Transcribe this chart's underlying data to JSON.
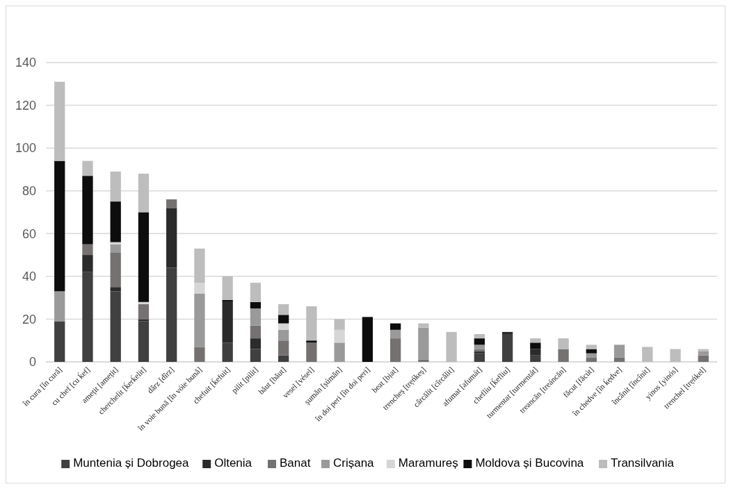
{
  "chart_data": {
    "type": "bar",
    "stacked": true,
    "categories": [
      "în cura [în cură]",
      "cu chef [cu ḱef]",
      "amețit [amețit]",
      "cherchelit [ḱerḱelit]",
      "dârz [dîrz]",
      "în voie bună [în vóie bună]",
      "chefuit [ḱefuit]",
      "pilit [pilit]",
      "băut [băut]",
      "vesel [vésel]",
      "șumăn [șúmăn]",
      "în doi peri [în doi peri]",
      "beat [bịat]",
      "trencheș [trẹńkeș]",
      "cârcălit [cîrcălit]",
      "afumat [afumát]",
      "cheflíu [ḱefliu]",
      "turmentat [turmentát]",
      "treancăn [treáncăn]",
      "făcut [făcút]",
      "în chedve [în ḱẹdve]",
      "încânit [încînit]",
      "yinos [yinós]",
      "trenchel [trẹńkel]"
    ],
    "series": [
      {
        "name": "Muntenia și Dobrogea",
        "color": "#404040",
        "values": [
          19,
          42,
          33,
          19,
          44,
          null,
          9,
          6,
          3,
          null,
          null,
          null,
          null,
          null,
          null,
          4,
          13,
          3,
          null,
          null,
          null,
          null,
          null,
          null
        ]
      },
      {
        "name": "Oltenia",
        "color": "#2b2b2b",
        "values": [
          null,
          8,
          2,
          1,
          28,
          null,
          19,
          5,
          null,
          null,
          null,
          null,
          null,
          null,
          null,
          1,
          1,
          3,
          null,
          null,
          null,
          null,
          null,
          null
        ]
      },
      {
        "name": "Banat",
        "color": "#767171",
        "values": [
          null,
          5,
          16,
          7,
          4,
          7,
          null,
          6,
          7,
          9,
          null,
          null,
          11,
          1,
          null,
          1,
          null,
          null,
          6,
          2,
          2,
          null,
          null,
          3
        ]
      },
      {
        "name": "Crișana",
        "color": "#9a9a9a",
        "values": [
          14,
          null,
          4,
          null,
          null,
          25,
          null,
          8,
          5,
          null,
          9,
          null,
          4,
          15,
          null,
          2,
          null,
          null,
          null,
          2,
          6,
          null,
          null,
          2
        ]
      },
      {
        "name": "Maramureș",
        "color": "#d6d6d6",
        "values": [
          null,
          null,
          1,
          1,
          null,
          5,
          null,
          null,
          3,
          null,
          6,
          null,
          null,
          null,
          null,
          null,
          null,
          null,
          null,
          null,
          null,
          null,
          null,
          null
        ]
      },
      {
        "name": "Moldova și Bucovina",
        "color": "#0d0d0d",
        "values": [
          61,
          32,
          19,
          42,
          null,
          null,
          1,
          3,
          4,
          1,
          null,
          21,
          3,
          null,
          null,
          3,
          null,
          3,
          null,
          2,
          null,
          null,
          null,
          null
        ]
      },
      {
        "name": "Transilvania",
        "color": "#bdbdbd",
        "values": [
          37,
          7,
          14,
          18,
          null,
          16,
          11,
          9,
          5,
          16,
          5,
          null,
          null,
          2,
          14,
          2,
          null,
          2,
          5,
          2,
          null,
          7,
          6,
          1
        ]
      }
    ],
    "ylim": [
      0,
      140
    ],
    "yticks": [
      0,
      20,
      40,
      60,
      80,
      100,
      120,
      140
    ],
    "grid": "y",
    "legend": "bottom"
  }
}
